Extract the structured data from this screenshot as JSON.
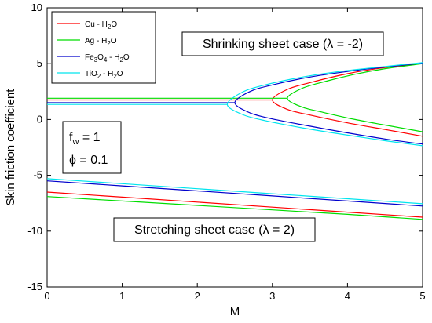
{
  "chart_data": {
    "type": "line",
    "xlabel": "M",
    "ylabel": "Skin friction coefficient",
    "xlim": [
      0,
      5
    ],
    "ylim": [
      -15,
      10
    ],
    "x_ticks": [
      0,
      1,
      2,
      3,
      4,
      5
    ],
    "y_ticks": [
      -15,
      -10,
      -5,
      0,
      5,
      10
    ],
    "x_tick_labels": [
      "0",
      "1",
      "2",
      "3",
      "4",
      "5"
    ],
    "y_tick_labels": [
      "-15",
      "-10",
      "-5",
      "0",
      "5",
      "10"
    ],
    "grid": false,
    "legend_position": "top-left",
    "legend": [
      {
        "key": "cu",
        "base": "Cu - H",
        "sub": "2",
        "tail": "O",
        "color": "#ff0000"
      },
      {
        "key": "ag",
        "base": "Ag - H",
        "sub": "2",
        "tail": "O",
        "color": "#00dd00"
      },
      {
        "key": "fe",
        "base": "Fe",
        "sub": "3",
        "mid": "O",
        "sub2": "4",
        "tail2": " - H",
        "sub3": "2",
        "tail": "O",
        "color": "#0000cc"
      },
      {
        "key": "ti",
        "base": "TiO",
        "sub": "2",
        "tail": " - H",
        "sub2": "2",
        "tail2": "O",
        "color": "#00e5ee"
      }
    ],
    "annotations": {
      "shrinking": {
        "label": "Shrinking sheet case (λ = -2)"
      },
      "stretching": {
        "label": "Stretching sheet case (λ = 2)"
      },
      "fw": {
        "base": "f",
        "sub": "w",
        "tail": " = 1"
      },
      "phi": {
        "label": "ϕ = 0.1"
      }
    },
    "series": [
      {
        "key": "cu",
        "color": "#ff0000",
        "shrinking": {
          "flat": {
            "x": [
              0,
              3.0
            ],
            "y": [
              1.75,
              1.75
            ]
          },
          "turning_point": {
            "M": 3.0,
            "value": 1.75
          },
          "upper_branch": {
            "x": [
              3.0,
              3.2,
              3.5,
              4.0,
              4.5,
              5.0
            ],
            "y": [
              1.75,
              2.7,
              3.3,
              4.1,
              4.65,
              5.0
            ]
          },
          "lower_branch": {
            "x": [
              3.0,
              3.2,
              3.5,
              4.0,
              4.5,
              5.0
            ],
            "y": [
              1.75,
              0.9,
              0.4,
              -0.3,
              -0.9,
              -1.5
            ]
          }
        },
        "stretching": {
          "x": [
            0,
            1,
            2,
            3,
            4,
            5
          ],
          "y": [
            -6.5,
            -6.95,
            -7.4,
            -7.85,
            -8.3,
            -8.75
          ]
        }
      },
      {
        "key": "ag",
        "color": "#00dd00",
        "shrinking": {
          "flat": {
            "x": [
              0,
              3.2
            ],
            "y": [
              1.9,
              1.9
            ]
          },
          "turning_point": {
            "M": 3.2,
            "value": 1.9
          },
          "upper_branch": {
            "x": [
              3.2,
              3.4,
              3.7,
              4.1,
              4.5,
              5.0
            ],
            "y": [
              1.9,
              2.8,
              3.4,
              4.05,
              4.55,
              5.0
            ]
          },
          "lower_branch": {
            "x": [
              3.2,
              3.4,
              3.7,
              4.1,
              4.5,
              5.0
            ],
            "y": [
              1.9,
              1.1,
              0.6,
              0.0,
              -0.5,
              -1.1
            ]
          }
        },
        "stretching": {
          "x": [
            0,
            1,
            2,
            3,
            4,
            5
          ],
          "y": [
            -6.9,
            -7.3,
            -7.7,
            -8.1,
            -8.5,
            -8.95
          ]
        }
      },
      {
        "key": "fe",
        "color": "#0000cc",
        "shrinking": {
          "flat": {
            "x": [
              0,
              2.5
            ],
            "y": [
              1.5,
              1.5
            ]
          },
          "turning_point": {
            "M": 2.5,
            "value": 1.5
          },
          "upper_branch": {
            "x": [
              2.5,
              2.7,
              3.0,
              3.5,
              4.0,
              4.5,
              5.0
            ],
            "y": [
              1.5,
              2.5,
              3.1,
              3.8,
              4.3,
              4.7,
              5.05
            ]
          },
          "lower_branch": {
            "x": [
              2.5,
              2.7,
              3.0,
              3.5,
              4.0,
              4.5,
              5.0
            ],
            "y": [
              1.5,
              0.6,
              0.05,
              -0.6,
              -1.2,
              -1.75,
              -2.2
            ]
          }
        },
        "stretching": {
          "x": [
            0,
            1,
            2,
            3,
            4,
            5
          ],
          "y": [
            -5.5,
            -5.95,
            -6.4,
            -6.85,
            -7.3,
            -7.75
          ]
        }
      },
      {
        "key": "ti",
        "color": "#00e5ee",
        "shrinking": {
          "flat": {
            "x": [
              0,
              2.4
            ],
            "y": [
              1.35,
              1.35
            ]
          },
          "turning_point": {
            "M": 2.4,
            "value": 1.35
          },
          "upper_branch": {
            "x": [
              2.4,
              2.6,
              2.9,
              3.4,
              3.9,
              4.5,
              5.0
            ],
            "y": [
              1.35,
              2.45,
              3.1,
              3.8,
              4.3,
              4.75,
              5.1
            ]
          },
          "lower_branch": {
            "x": [
              2.4,
              2.6,
              2.9,
              3.4,
              3.9,
              4.5,
              5.0
            ],
            "y": [
              1.35,
              0.45,
              -0.1,
              -0.75,
              -1.3,
              -1.9,
              -2.35
            ]
          }
        },
        "stretching": {
          "x": [
            0,
            1,
            2,
            3,
            4,
            5
          ],
          "y": [
            -5.3,
            -5.75,
            -6.2,
            -6.65,
            -7.1,
            -7.55
          ]
        }
      }
    ]
  }
}
